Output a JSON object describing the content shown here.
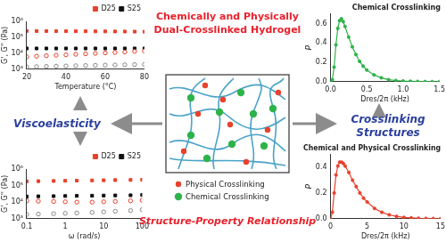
{
  "chart_data": [
    {
      "type": "scatter",
      "x_label": "Temperature (°C)",
      "y_label": "G', G'' (Pa)",
      "x": [
        20,
        25,
        30,
        35,
        40,
        45,
        50,
        55,
        60,
        65,
        70,
        75,
        80
      ],
      "series": [
        {
          "name": "D25",
          "color": "#e8412c",
          "marker": "square",
          "values": [
            250000,
            248000,
            246000,
            244000,
            242000,
            240000,
            238000,
            236000,
            234000,
            232000,
            230000,
            228000,
            226000
          ]
        },
        {
          "color": "#e8412c",
          "marker": "open_circle",
          "values": [
            6000,
            6500,
            7000,
            7500,
            8000,
            8600,
            9200,
            9800,
            10500,
            11200,
            12000,
            13000,
            14000
          ]
        },
        {
          "name": "S25",
          "color": "#111111",
          "marker": "square",
          "values": [
            20000,
            20000,
            20000,
            20000,
            20000,
            20000,
            20000,
            20000,
            20000,
            20000,
            20000,
            20000,
            20000
          ]
        },
        {
          "color": "#888888",
          "marker": "open_circle",
          "values": [
            1400,
            1450,
            1500,
            1550,
            1600,
            1650,
            1700,
            1750,
            1800,
            1850,
            1900,
            1950,
            2000
          ]
        }
      ],
      "xlim": [
        20,
        80
      ],
      "xticks": [
        20,
        40,
        60,
        80
      ],
      "ylim": [
        1000,
        1000000
      ],
      "yticks": [
        {
          "value": 1000,
          "label": "10³"
        },
        {
          "value": 10000,
          "label": "10⁴"
        },
        {
          "value": 100000,
          "label": "10⁵"
        },
        {
          "value": 1000000,
          "label": "10⁶"
        }
      ],
      "log": "y",
      "grid": false,
      "legend": "upper right"
    },
    {
      "type": "scatter",
      "x_label": "ω (rad/s)",
      "y_label": "G', G'' (Pa)",
      "x": [
        0.1,
        0.2,
        0.5,
        1,
        2,
        5,
        10,
        20,
        50,
        100
      ],
      "series": [
        {
          "name": "D25",
          "color": "#e8412c",
          "marker": "square",
          "values": [
            180000,
            185000,
            190000,
            195000,
            200000,
            205000,
            210000,
            215000,
            220000,
            225000
          ]
        },
        {
          "color": "#e8412c",
          "marker": "open_circle",
          "values": [
            12000,
            11500,
            11000,
            10500,
            10000,
            10000,
            10500,
            11000,
            12000,
            13000
          ]
        },
        {
          "name": "S25",
          "color": "#111111",
          "marker": "square",
          "values": [
            22000,
            22500,
            23000,
            23500,
            24000,
            24500,
            25000,
            25500,
            26000,
            27000
          ]
        },
        {
          "color": "#888888",
          "marker": "open_circle",
          "values": [
            1800,
            1900,
            2000,
            2100,
            2200,
            2400,
            2600,
            2800,
            3100,
            3500
          ]
        }
      ],
      "xlim": [
        0.1,
        100
      ],
      "xticks": [
        0.1,
        1,
        10,
        100
      ],
      "ylim": [
        1000,
        1000000
      ],
      "yticks": [
        {
          "value": 1000,
          "label": "10³"
        },
        {
          "value": 10000,
          "label": "10⁴"
        },
        {
          "value": 100000,
          "label": "10⁵"
        },
        {
          "value": 1000000,
          "label": "10⁶"
        }
      ],
      "log": true,
      "grid": false,
      "legend": "upper right"
    },
    {
      "type": "line",
      "title": "Chemical Crosslinking",
      "x_label": "Dres/2π (kHz)",
      "y_label": "P",
      "x": [
        0,
        0.025,
        0.05,
        0.075,
        0.1,
        0.125,
        0.15,
        0.175,
        0.2,
        0.25,
        0.3,
        0.35,
        0.4,
        0.45,
        0.5,
        0.6,
        0.7,
        0.8,
        0.9,
        1.0,
        1.1,
        1.2,
        1.3,
        1.4,
        1.5
      ],
      "series": [
        {
          "color": "#2db34a",
          "marker": "circle",
          "values": [
            0,
            0.02,
            0.15,
            0.38,
            0.55,
            0.63,
            0.65,
            0.62,
            0.57,
            0.46,
            0.36,
            0.28,
            0.21,
            0.16,
            0.12,
            0.07,
            0.04,
            0.02,
            0.012,
            0.007,
            0.004,
            0.002,
            0.001,
            0.0005,
            0
          ]
        }
      ],
      "xlim": [
        0,
        1.5
      ],
      "xticks": [
        {
          "value": 0,
          "label": "0.0"
        },
        0.5,
        {
          "value": 1,
          "label": "1.0"
        },
        1.5
      ],
      "ylim": [
        0,
        0.7
      ],
      "yticks": [
        {
          "value": 0,
          "label": "0.0"
        },
        0.2,
        0.4,
        0.6
      ],
      "grid": false
    },
    {
      "type": "line",
      "title": "Chemical and Physical Crosslinking",
      "x_label": "Dres/2π (kHz)",
      "y_label": "P",
      "x": [
        0,
        0.25,
        0.5,
        0.75,
        1,
        1.25,
        1.5,
        1.75,
        2,
        2.5,
        3,
        3.5,
        4,
        4.5,
        5,
        6,
        7,
        8,
        9,
        10,
        11,
        12,
        13,
        14,
        15
      ],
      "series": [
        {
          "color": "#e8412c",
          "marker": "circle",
          "values": [
            0,
            0.05,
            0.2,
            0.34,
            0.41,
            0.44,
            0.44,
            0.43,
            0.41,
            0.36,
            0.3,
            0.25,
            0.2,
            0.16,
            0.13,
            0.08,
            0.05,
            0.03,
            0.018,
            0.01,
            0.006,
            0.003,
            0.002,
            0.001,
            0
          ]
        }
      ],
      "xlim": [
        0,
        15
      ],
      "xticks": [
        0,
        5,
        10,
        15
      ],
      "ylim": [
        0,
        0.5
      ],
      "yticks": [
        {
          "value": 0,
          "label": "0.0"
        },
        0.2,
        0.4
      ],
      "grid": false
    }
  ],
  "diagram": {
    "title": [
      "Chemically and Physically",
      "Dual-Crosslinked Hydrogel"
    ],
    "legend": [
      {
        "label": "Physical Crosslinking",
        "color": "#e8412c"
      },
      {
        "label": "Chemical Crosslinking",
        "color": "#2db34a"
      }
    ],
    "left_label": "Viscoelasticity",
    "right_label": [
      "Crosslinking",
      "Structures"
    ],
    "bottom_label": "Structure-Property Relationship"
  }
}
